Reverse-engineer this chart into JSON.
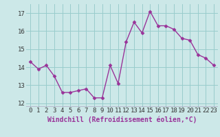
{
  "x": [
    0,
    1,
    2,
    3,
    4,
    5,
    6,
    7,
    8,
    9,
    10,
    11,
    12,
    13,
    14,
    15,
    16,
    17,
    18,
    19,
    20,
    21,
    22,
    23
  ],
  "y": [
    14.3,
    13.9,
    14.1,
    13.5,
    12.6,
    12.6,
    12.7,
    12.8,
    12.3,
    12.3,
    14.1,
    13.1,
    15.4,
    16.5,
    15.9,
    17.1,
    16.3,
    16.3,
    16.1,
    15.6,
    15.5,
    14.7,
    14.5,
    14.1
  ],
  "line_color": "#993399",
  "marker": "D",
  "marker_size": 2.5,
  "bg_color": "#cce8e8",
  "grid_color": "#99cccc",
  "xlabel": "Windchill (Refroidissement éolien,°C)",
  "xlabel_fontsize": 7,
  "xlim": [
    -0.5,
    23.5
  ],
  "ylim": [
    11.8,
    17.5
  ],
  "yticks": [
    12,
    13,
    14,
    15,
    16,
    17
  ],
  "xticks": [
    0,
    1,
    2,
    3,
    4,
    5,
    6,
    7,
    8,
    9,
    10,
    11,
    12,
    13,
    14,
    15,
    16,
    17,
    18,
    19,
    20,
    21,
    22,
    23
  ],
  "tick_fontsize": 6.5,
  "line_width": 1.0,
  "separator_color": "#660066"
}
